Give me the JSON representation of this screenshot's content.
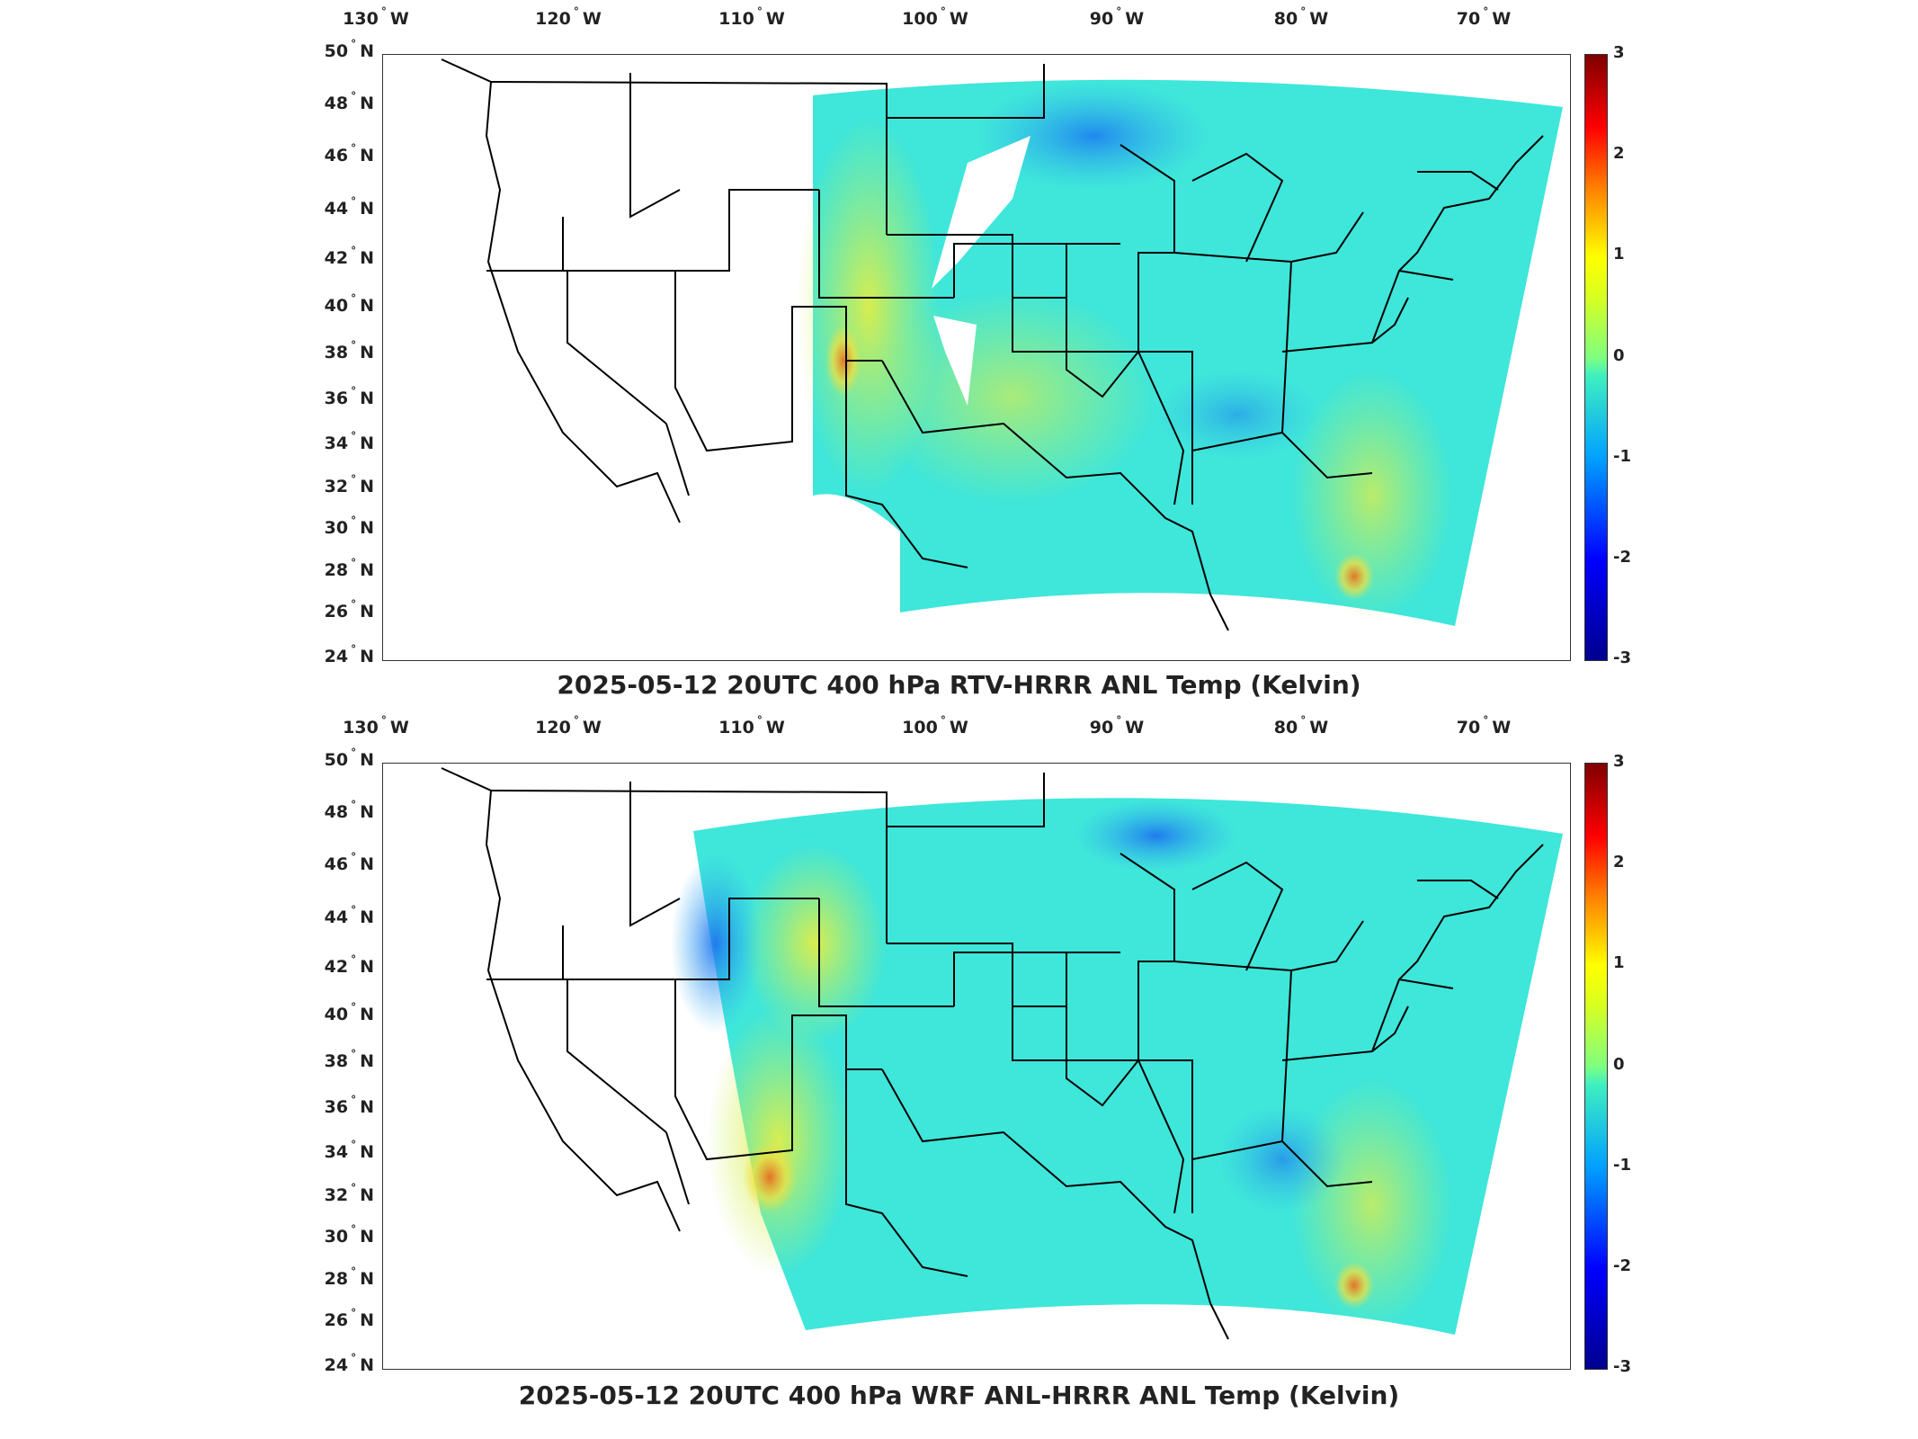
{
  "panels": [
    {
      "title": "2025-05-12 20UTC 400 hPa RTV-HRRR ANL Temp (Kelvin)",
      "lon_ticks": [
        "130",
        "120",
        "110",
        "100",
        "90",
        "80",
        "70"
      ],
      "lon_suffix": "W",
      "lat_ticks": [
        "50",
        "48",
        "46",
        "44",
        "42",
        "40",
        "38",
        "36",
        "34",
        "32",
        "30",
        "28",
        "26",
        "24"
      ],
      "lat_suffix": "N",
      "colorbar_ticks": [
        "3",
        "2",
        "1",
        "0",
        "-1",
        "-2",
        "-3"
      ]
    },
    {
      "title": "2025-05-12 20UTC 400 hPa WRF ANL-HRRR ANL Temp (Kelvin)",
      "lon_ticks": [
        "130",
        "120",
        "110",
        "100",
        "90",
        "80",
        "70"
      ],
      "lon_suffix": "W",
      "lat_ticks": [
        "50",
        "48",
        "46",
        "44",
        "42",
        "40",
        "38",
        "36",
        "34",
        "32",
        "30",
        "28",
        "26",
        "24"
      ],
      "lat_suffix": "N",
      "colorbar_ticks": [
        "3",
        "2",
        "1",
        "0",
        "-1",
        "-2",
        "-3"
      ]
    }
  ],
  "colorbar": {
    "min": -3,
    "max": 3,
    "colormap": "jet",
    "colors": [
      "#00008f",
      "#0000ff",
      "#00a0ff",
      "#3ff0c0",
      "#7fff7f",
      "#ffff00",
      "#ff8000",
      "#ff0000",
      "#7f0000"
    ]
  },
  "field": {
    "base_color": "#3fe8d8",
    "cool_color": "#2aa8f0",
    "warm_color": "#f0ee40",
    "hot_color": "#f08a20"
  }
}
